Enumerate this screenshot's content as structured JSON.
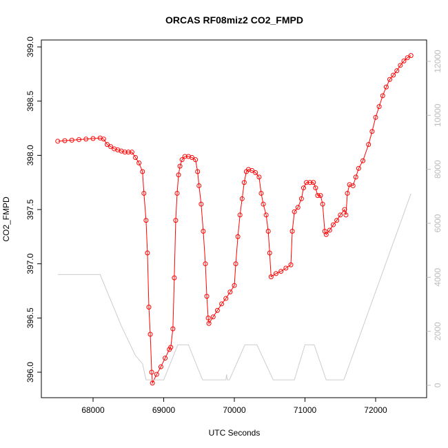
{
  "chart_data": {
    "type": "scatter-line",
    "title": "ORCAS RF08miz2 CO2_FMPD",
    "xlabel": "UTC Seconds",
    "ylabel": "CO2_FMPD",
    "xlim": [
      67268,
      72722
    ],
    "ylim": [
      395.765,
      399.064
    ],
    "y2lim": [
      -460,
      12791
    ],
    "xticks": [
      68000,
      69000,
      70000,
      71000,
      72000
    ],
    "yticks": [
      {
        "value": 396,
        "label": "396.0"
      },
      396.5,
      {
        "value": 397,
        "label": "397.0"
      },
      397.5,
      {
        "value": 398,
        "label": "398.0"
      },
      398.5,
      {
        "value": 399,
        "label": "399.0"
      }
    ],
    "y2ticks": [
      0,
      2000,
      4000,
      6000,
      8000,
      10000,
      12000
    ],
    "series": [
      {
        "color": "#ff0000",
        "axis": "y",
        "x": [
          67500,
          67600,
          67700,
          67800,
          67900,
          68000,
          68100,
          68150,
          68200,
          68250,
          68300,
          68350,
          68400,
          68450,
          68500,
          68550,
          68600,
          68650,
          68700,
          68720,
          68750,
          68770,
          68790,
          68810,
          68830,
          68840,
          68900,
          68960,
          69020,
          69080,
          69100,
          69130,
          69150,
          69170,
          69190,
          69210,
          69230,
          69260,
          69300,
          69350,
          69400,
          69450,
          69480,
          69500,
          69530,
          69560,
          69590,
          69610,
          69630,
          69640,
          69700,
          69760,
          69820,
          69880,
          69940,
          70000,
          70020,
          70050,
          70080,
          70110,
          70140,
          70170,
          70200,
          70250,
          70300,
          70350,
          70380,
          70410,
          70450,
          70480,
          70500,
          70520,
          70590,
          70660,
          70730,
          70800,
          70820,
          70850,
          70900,
          70950,
          70980,
          71020,
          71070,
          71120,
          71150,
          71180,
          71220,
          71250,
          71280,
          71300,
          71350,
          71400,
          71450,
          71500,
          71560,
          71580,
          71600,
          71630,
          71680,
          71720,
          71760,
          71820,
          71900,
          71950,
          72000,
          72050,
          72100,
          72150,
          72200,
          72250,
          72300,
          72350,
          72400,
          72450,
          72500
        ],
        "values": [
          398.13,
          398.135,
          398.14,
          398.145,
          398.15,
          398.155,
          398.16,
          398.15,
          398.1,
          398.08,
          398.06,
          398.05,
          398.04,
          398.03,
          398.03,
          398.03,
          397.98,
          397.93,
          397.85,
          397.65,
          397.4,
          397.1,
          396.6,
          396.35,
          396.0,
          395.9,
          395.98,
          396.05,
          396.13,
          396.21,
          396.23,
          396.4,
          396.87,
          397.4,
          397.65,
          397.82,
          397.9,
          397.96,
          397.99,
          397.99,
          397.98,
          397.96,
          397.85,
          397.72,
          397.55,
          397.3,
          397.0,
          396.7,
          396.5,
          396.45,
          396.51,
          396.57,
          396.63,
          396.68,
          396.74,
          396.8,
          397.0,
          397.25,
          397.45,
          397.6,
          397.75,
          397.85,
          397.87,
          397.86,
          397.84,
          397.8,
          397.65,
          397.55,
          397.45,
          397.3,
          397.1,
          396.88,
          396.91,
          396.93,
          396.96,
          396.99,
          397.3,
          397.48,
          397.52,
          397.6,
          397.7,
          397.75,
          397.75,
          397.75,
          397.7,
          397.63,
          397.63,
          397.55,
          397.3,
          397.27,
          397.31,
          397.36,
          397.4,
          397.45,
          397.5,
          397.45,
          397.65,
          397.73,
          397.72,
          397.8,
          397.88,
          397.95,
          398.1,
          398.22,
          398.35,
          398.45,
          398.55,
          398.63,
          398.7,
          398.74,
          398.78,
          398.83,
          398.87,
          398.9,
          398.92
        ]
      },
      {
        "color": "#cccccc",
        "axis": "y2",
        "x": [
          67500,
          68100,
          68400,
          68600,
          68700,
          68750,
          68800,
          69000,
          69200,
          69350,
          69550,
          69700,
          69880,
          69890,
          69900,
          69910,
          69930,
          70150,
          70320,
          70550,
          70850,
          71000,
          71130,
          71300,
          71550,
          72500
        ],
        "values": [
          4100,
          4100,
          2200,
          1100,
          800,
          200,
          200,
          200,
          1500,
          1500,
          200,
          200,
          200,
          400,
          200,
          200,
          200,
          1500,
          1500,
          200,
          200,
          1500,
          1500,
          200,
          200,
          7100
        ]
      }
    ]
  }
}
